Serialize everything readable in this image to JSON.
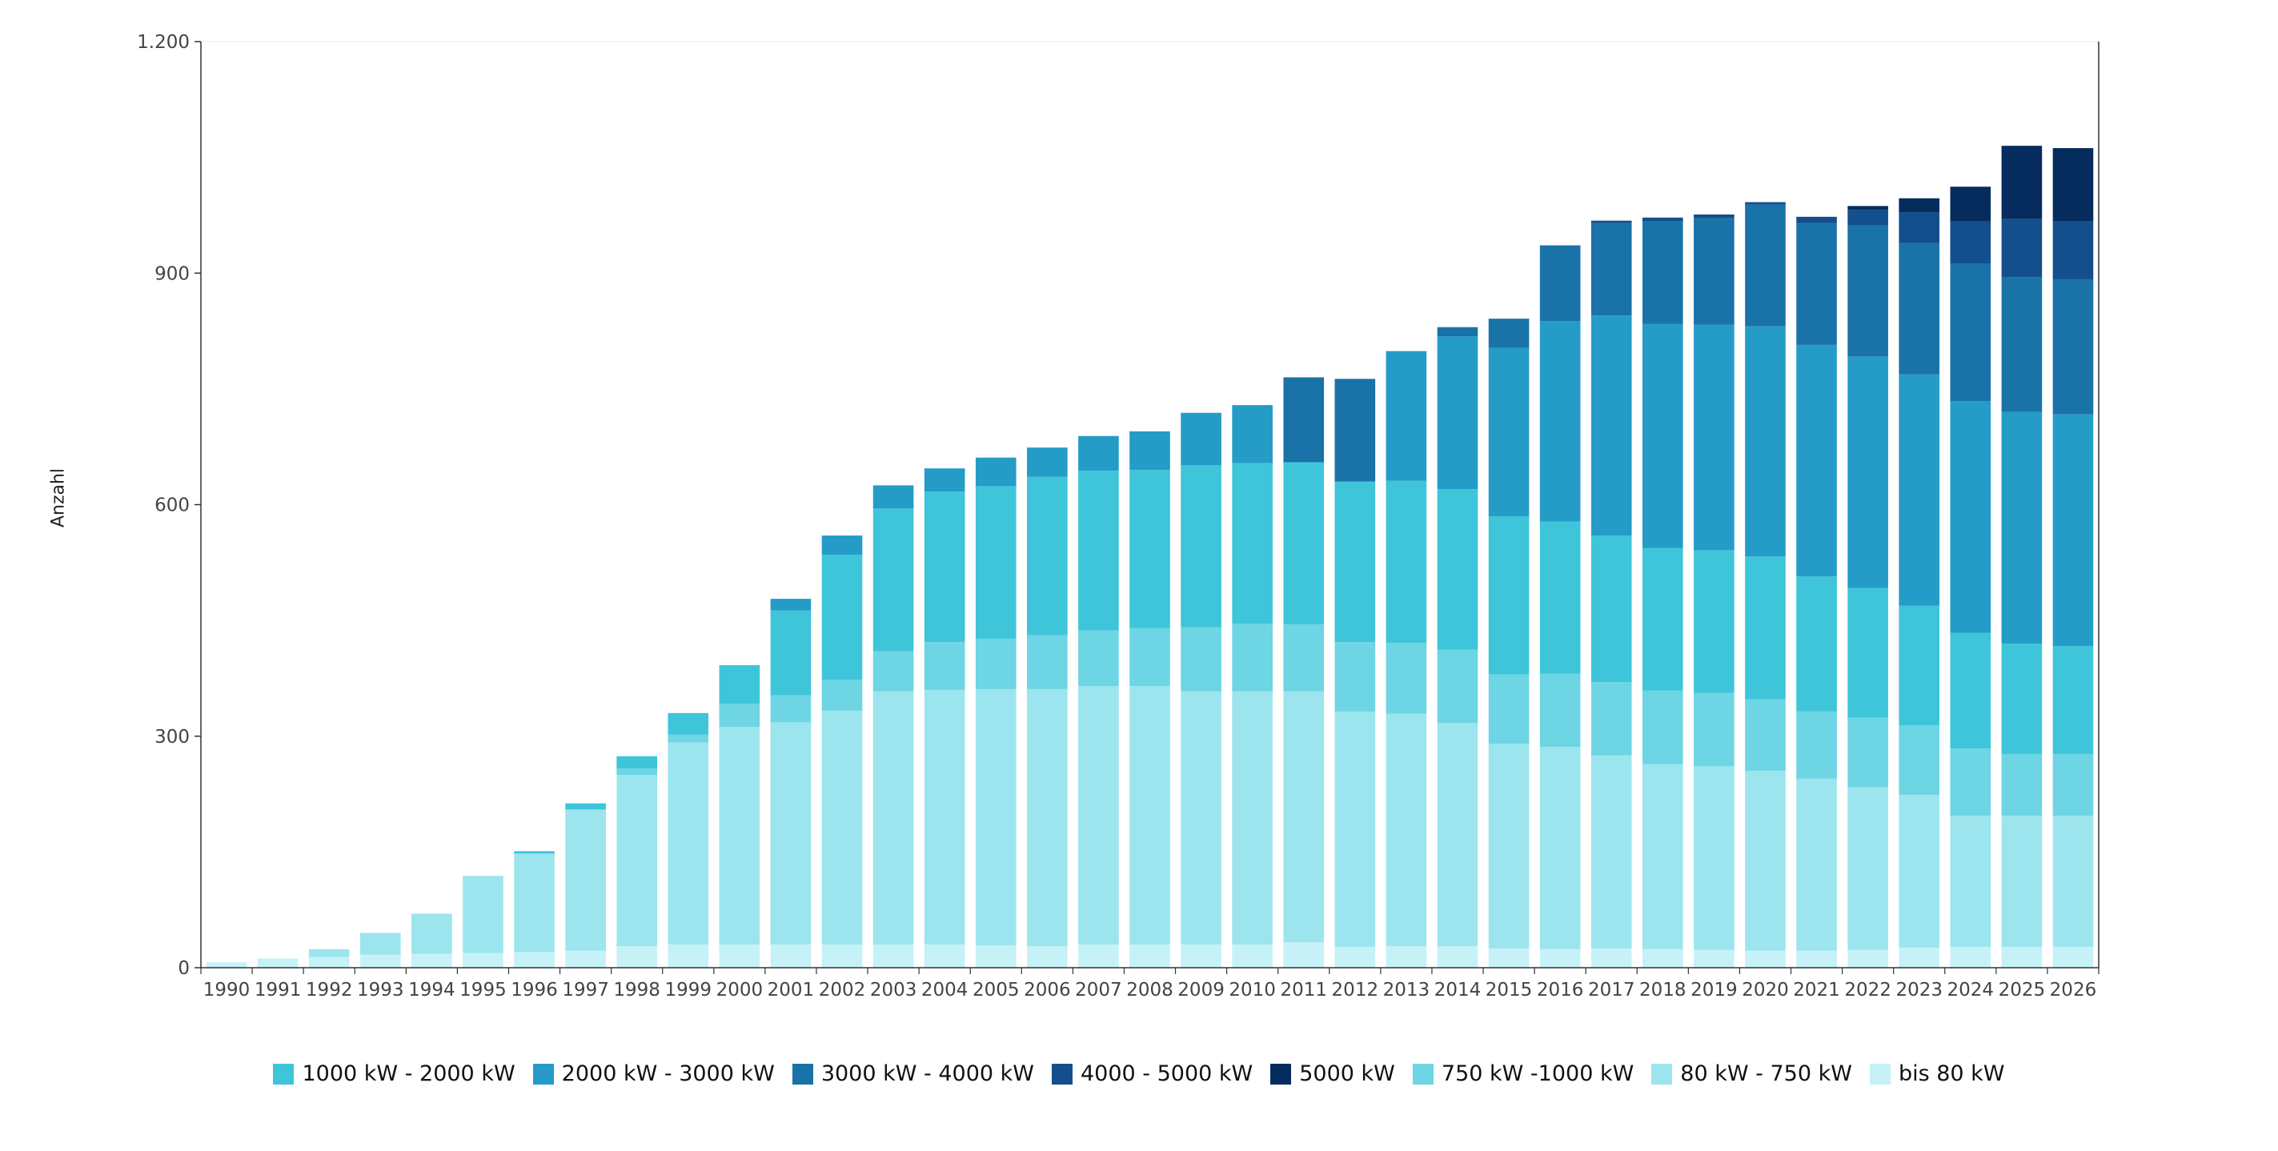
{
  "chart_data": {
    "type": "bar",
    "stacked": true,
    "title": "",
    "xlabel": "",
    "ylabel": "Anzahl",
    "ylim": [
      0,
      1200
    ],
    "yticks": [
      0,
      300,
      600,
      900,
      1200
    ],
    "ytick_labels": [
      "0",
      "300",
      "600",
      "900",
      "1.200"
    ],
    "grid": false,
    "legend_position": "bottom",
    "categories": [
      "1990",
      "1991",
      "1992",
      "1993",
      "1994",
      "1995",
      "1996",
      "1997",
      "1998",
      "1999",
      "2000",
      "2001",
      "2002",
      "2003",
      "2004",
      "2005",
      "2006",
      "2007",
      "2008",
      "2009",
      "2010",
      "2011",
      "2012",
      "2013",
      "2014",
      "2015",
      "2016",
      "2017",
      "2018",
      "2019",
      "2020",
      "2021",
      "2022",
      "2023",
      "2024",
      "2025",
      "2026"
    ],
    "series": [
      {
        "name": "bis 80 kW",
        "color": "#c6f2f7",
        "values": [
          7,
          12,
          14,
          17,
          18,
          19,
          20,
          22,
          28,
          30,
          30,
          30,
          30,
          30,
          30,
          29,
          28,
          30,
          30,
          30,
          30,
          33,
          27,
          28,
          28,
          25,
          24,
          25,
          24,
          23,
          22,
          22,
          23,
          26,
          27,
          27,
          27
        ]
      },
      {
        "name": "80 kW - 750 kW",
        "color": "#9ce5ee",
        "values": [
          0,
          0,
          10,
          28,
          52,
          100,
          128,
          183,
          222,
          262,
          282,
          288,
          303,
          328,
          330,
          332,
          333,
          335,
          335,
          328,
          328,
          325,
          305,
          301,
          289,
          265,
          262,
          250,
          240,
          238,
          233,
          223,
          211,
          198,
          170,
          170,
          170
        ]
      },
      {
        "name": "750 kW -1000 kW",
        "color": "#6dd5e3",
        "values": [
          0,
          0,
          0,
          0,
          0,
          0,
          0,
          0,
          8,
          10,
          30,
          35,
          40,
          52,
          62,
          65,
          70,
          72,
          75,
          83,
          88,
          87,
          90,
          92,
          95,
          90,
          95,
          95,
          95,
          95,
          93,
          87,
          90,
          90,
          87,
          80,
          80
        ]
      },
      {
        "name": "1000 kW - 2000 kW",
        "color": "#3ec5da",
        "values": [
          0,
          0,
          0,
          0,
          0,
          0,
          3,
          8,
          16,
          28,
          50,
          110,
          162,
          185,
          195,
          198,
          205,
          207,
          205,
          210,
          208,
          210,
          208,
          210,
          208,
          205,
          197,
          190,
          185,
          185,
          185,
          175,
          168,
          155,
          150,
          143,
          140
        ]
      },
      {
        "name": "2000 kW - 3000 kW",
        "color": "#259bc8",
        "values": [
          0,
          0,
          0,
          0,
          0,
          0,
          0,
          0,
          0,
          0,
          0,
          15,
          25,
          30,
          30,
          37,
          38,
          45,
          50,
          68,
          75,
          0,
          0,
          168,
          198,
          218,
          260,
          285,
          290,
          292,
          298,
          300,
          300,
          300,
          300,
          300,
          300
        ]
      },
      {
        "name": "3000 kW - 4000 kW",
        "color": "#1a73a8",
        "values": [
          0,
          0,
          0,
          0,
          0,
          0,
          0,
          0,
          0,
          0,
          0,
          0,
          0,
          0,
          0,
          0,
          0,
          0,
          0,
          0,
          0,
          110,
          133,
          0,
          12,
          38,
          98,
          120,
          133,
          138,
          158,
          158,
          170,
          170,
          178,
          175,
          175
        ]
      },
      {
        "name": "4000 - 5000 kW",
        "color": "#134f8c",
        "values": [
          0,
          0,
          0,
          0,
          0,
          0,
          0,
          0,
          0,
          0,
          0,
          0,
          0,
          0,
          0,
          0,
          0,
          0,
          0,
          0,
          0,
          0,
          0,
          0,
          0,
          0,
          0,
          3,
          5,
          5,
          3,
          8,
          20,
          40,
          55,
          75,
          75
        ]
      },
      {
        "name": "5000 kW",
        "color": "#062c5e",
        "values": [
          0,
          0,
          0,
          0,
          0,
          0,
          0,
          0,
          0,
          0,
          0,
          0,
          0,
          0,
          0,
          0,
          0,
          0,
          0,
          0,
          0,
          0,
          0,
          0,
          0,
          0,
          0,
          0,
          0,
          0,
          0,
          0,
          5,
          18,
          45,
          95,
          95
        ]
      }
    ],
    "legend_order": [
      "1000 kW - 2000 kW",
      "2000 kW - 3000 kW",
      "3000 kW - 4000 kW",
      "4000 - 5000 kW",
      "5000 kW",
      "750 kW -1000 kW",
      "80 kW - 750 kW",
      "bis 80 kW"
    ]
  }
}
